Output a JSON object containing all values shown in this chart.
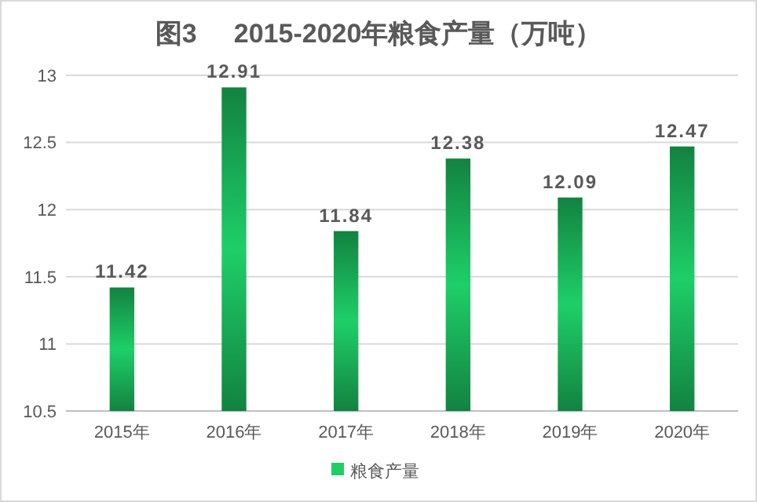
{
  "chart_data": {
    "type": "bar",
    "title": "图3     2015-2020年粮食产量（万吨）",
    "categories": [
      "2015年",
      "2016年",
      "2017年",
      "2018年",
      "2019年",
      "2020年"
    ],
    "series": [
      {
        "name": "粮食产量",
        "color": "#1ecf68",
        "values": [
          11.42,
          12.91,
          11.84,
          12.38,
          12.09,
          12.47
        ]
      }
    ],
    "ylim": [
      10.5,
      13
    ],
    "yticks": [
      10.5,
      11,
      11.5,
      12,
      12.5,
      13
    ],
    "grid": "y",
    "legend": "bottom",
    "data_labels": true
  }
}
